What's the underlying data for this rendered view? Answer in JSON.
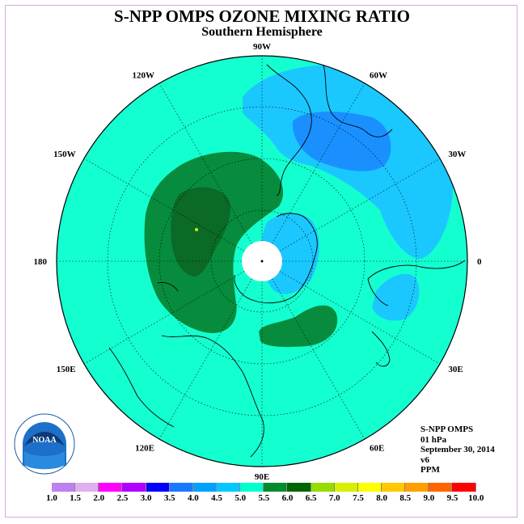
{
  "title": "S-NPP OMPS OZONE MIXING RATIO",
  "subtitle": "Southern Hemisphere",
  "logo_text": "NOAA",
  "info": {
    "instrument": "S-NPP OMPS",
    "level": "01 hPa",
    "date": "September 30, 2014",
    "version": "v6",
    "units": "PPM"
  },
  "longitude_labels": [
    {
      "label": "90W",
      "angle": -90
    },
    {
      "label": "60W",
      "angle": -60
    },
    {
      "label": "30W",
      "angle": -30
    },
    {
      "label": "0",
      "angle": 0
    },
    {
      "label": "30E",
      "angle": 30
    },
    {
      "label": "60E",
      "angle": 60
    },
    {
      "label": "90E",
      "angle": 90
    },
    {
      "label": "120E",
      "angle": 120
    },
    {
      "label": "150E",
      "angle": 150
    },
    {
      "label": "180",
      "angle": 180
    },
    {
      "label": "150W",
      "angle": 210
    },
    {
      "label": "120W",
      "angle": 240
    }
  ],
  "colorbar": {
    "ticks": [
      "1.0",
      "1.5",
      "2.0",
      "2.5",
      "3.0",
      "3.5",
      "4.0",
      "4.5",
      "5.0",
      "5.5",
      "6.0",
      "6.5",
      "7.0",
      "7.5",
      "8.0",
      "8.5",
      "9.0",
      "9.5",
      "10.0"
    ],
    "colors": [
      "#bf80ef",
      "#dfafef",
      "#ff00ff",
      "#b000ff",
      "#0000ff",
      "#1a78ff",
      "#00a0ff",
      "#00c8ff",
      "#00ffcc",
      "#008c2d",
      "#006400",
      "#96dc00",
      "#d8f000",
      "#ffff00",
      "#ffc800",
      "#ffa000",
      "#ff6400",
      "#ff0000",
      "#8c4614"
    ]
  },
  "map": {
    "background_color": "#14ffd0",
    "colors": {
      "cyan": "#14ffd0",
      "light_blue": "#1ac8ff",
      "blue": "#1a90ff",
      "green": "#068c3c",
      "dark_green": "#0a6a26"
    }
  }
}
